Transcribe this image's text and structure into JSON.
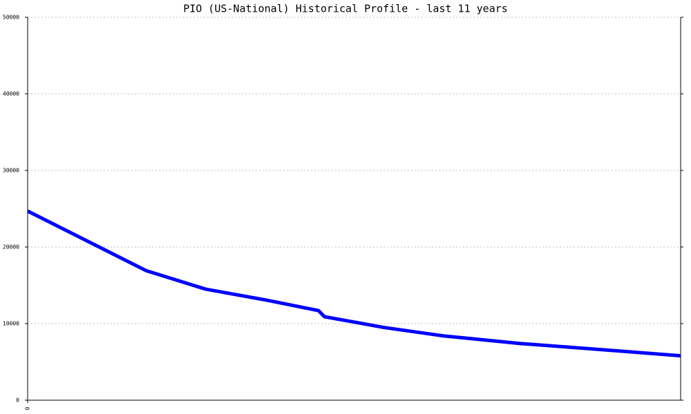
{
  "chart_data": {
    "type": "line",
    "title": "PIO (US-National) Historical Profile - last 11 years",
    "x": [
      0,
      2,
      3,
      4,
      4.9,
      5,
      6,
      7,
      8.3,
      9.5,
      11
    ],
    "xlim": [
      0,
      11
    ],
    "xticks": [
      0
    ],
    "series": [
      {
        "color": "#0000ff",
        "values": [
          24700,
          16900,
          14500,
          13100,
          11700,
          10900,
          9500,
          8400,
          7400,
          6700,
          5800
        ]
      }
    ],
    "ylim": [
      0,
      50000
    ],
    "yticks": [
      0,
      10000,
      20000,
      30000,
      40000,
      50000
    ],
    "grid": true
  }
}
